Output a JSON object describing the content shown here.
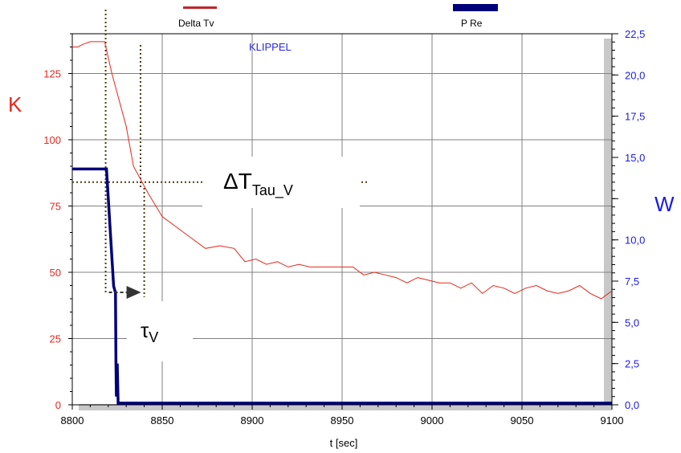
{
  "chart_data": {
    "type": "line",
    "xlabel": "t [sec]",
    "y_left_label": "K",
    "y_right_label": "W",
    "watermark": "KLIPPEL",
    "xlim": [
      8800,
      9100
    ],
    "x_ticks": [
      8800,
      8850,
      8900,
      8950,
      9000,
      9050,
      9100
    ],
    "x_tick_labels": [
      "8800",
      "8850",
      "8900",
      "8950",
      "9000",
      "9050",
      "9100"
    ],
    "y_left_lim": [
      0,
      140
    ],
    "y_left_ticks": [
      0,
      25,
      50,
      75,
      100,
      125
    ],
    "y_left_tick_labels": [
      "0",
      "25",
      "50",
      "75",
      "100",
      "125"
    ],
    "y_right_lim": [
      0,
      22.5
    ],
    "y_right_ticks": [
      0,
      2.5,
      5.0,
      7.5,
      10.0,
      12.5,
      15.0,
      17.5,
      20.0,
      22.5
    ],
    "y_right_tick_labels": [
      "0,0",
      "2,5",
      "5,0",
      "7,5",
      "10,0",
      "",
      "15,0",
      "17,5",
      "20,0",
      "22,5"
    ],
    "grid": true,
    "legend_position": "top",
    "series": [
      {
        "name": "Delta Tv",
        "axis": "left",
        "color": "#e8261c",
        "x": [
          8800,
          8803,
          8806,
          8810,
          8818,
          8822,
          8830,
          8834,
          8842,
          8850,
          8858,
          8866,
          8874,
          8882,
          8890,
          8896,
          8902,
          8908,
          8914,
          8920,
          8926,
          8932,
          8938,
          8944,
          8950,
          8956,
          8962,
          8968,
          8974,
          8980,
          8986,
          8992,
          8998,
          9004,
          9010,
          9016,
          9022,
          9028,
          9034,
          9040,
          9046,
          9052,
          9058,
          9064,
          9070,
          9076,
          9082,
          9088,
          9094,
          9100
        ],
        "y": [
          135,
          135,
          136,
          137,
          137,
          125,
          105,
          90,
          80,
          71,
          67,
          63,
          59,
          60,
          59,
          54,
          55,
          53,
          54,
          52,
          53,
          52,
          52,
          52,
          52,
          52,
          49,
          50,
          49,
          48,
          46,
          48,
          47,
          46,
          46,
          44,
          46,
          42,
          45,
          44,
          42,
          44,
          45,
          43,
          42,
          43,
          45,
          42,
          40,
          43
        ]
      },
      {
        "name": "P Re",
        "axis": "right",
        "color": "#00007a",
        "x": [
          8800,
          8805,
          8810,
          8818,
          8819,
          8823,
          8824,
          8824.3,
          8824.5,
          8825,
          8825.5,
          8830,
          8860,
          8900,
          8950,
          9000,
          9050,
          9100
        ],
        "y": [
          14.3,
          14.3,
          14.3,
          14.3,
          14.3,
          7.2,
          6.8,
          2.5,
          0.5,
          2.5,
          0.1,
          0.1,
          0.1,
          0.1,
          0.1,
          0.1,
          0.1,
          0.1
        ]
      }
    ],
    "annotations": {
      "delta_t_base": "ΔT",
      "delta_t_sub": "Tau_V",
      "tau_base": "τ",
      "tau_sub": "V",
      "delta_t_level": 84,
      "tau_start_x": 8819,
      "tau_end_x": 8840
    }
  }
}
